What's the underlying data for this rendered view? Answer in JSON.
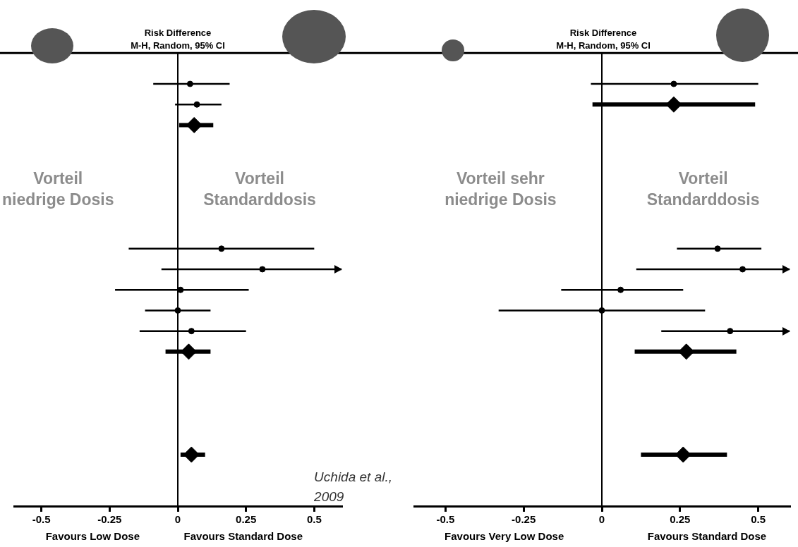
{
  "chart_data": [
    {
      "type": "scatter",
      "orientation": "horizontal",
      "title": "Risk Difference",
      "subtitle": "M-H, Random, 95% CI",
      "categories": [
        null,
        null,
        null,
        null,
        null,
        null,
        null,
        null,
        null,
        null,
        null,
        null,
        null,
        null,
        null,
        null,
        null,
        null,
        null,
        null,
        null,
        null
      ],
      "series": [
        {
          "type": "scatter",
          "marker": "circle",
          "color": "#000000",
          "values": [
            null,
            0.045,
            0.07,
            null,
            null,
            null,
            null,
            null,
            null,
            0.16,
            0.31,
            0.01,
            0,
            0.05,
            null,
            null,
            null,
            null,
            null,
            null,
            null,
            null
          ],
          "errors": [
            null,
            [
              -0.09,
              0.19
            ],
            [
              -0.01,
              0.16
            ],
            null,
            null,
            null,
            null,
            null,
            null,
            [
              -0.18,
              0.5
            ],
            [
              -0.06,
              0.6
            ],
            [
              -0.23,
              0.26
            ],
            [
              -0.12,
              0.12
            ],
            [
              -0.14,
              0.25
            ],
            null,
            null,
            null,
            null,
            null,
            null,
            null,
            null
          ]
        },
        {
          "type": "scatter",
          "marker": "diamond",
          "color": "#000000",
          "values": [
            null,
            null,
            null,
            0.06,
            null,
            null,
            null,
            null,
            null,
            null,
            null,
            null,
            null,
            null,
            0.04,
            null,
            null,
            null,
            null,
            0.05,
            null,
            null
          ],
          "errors": [
            null,
            null,
            null,
            [
              0.005,
              0.13
            ],
            null,
            null,
            null,
            null,
            null,
            null,
            null,
            null,
            null,
            null,
            [
              -0.045,
              0.12
            ],
            null,
            null,
            null,
            null,
            [
              0.01,
              0.1
            ],
            null,
            null
          ]
        }
      ],
      "xlim": [
        -0.6,
        0.6
      ],
      "xticks": [
        -0.5,
        -0.25,
        0,
        0.25,
        0.5
      ],
      "grid": false,
      "legend": false,
      "ref_lines": [
        {
          "axis": "x",
          "value": 0
        }
      ],
      "annotations": [
        "Favours Low Dose",
        "Favours Standard Dose",
        "Vorteil\nniedrige Dosis",
        "Vorteil\nStandarddosis",
        "Uchida et al.,\n2009"
      ]
    },
    {
      "type": "scatter",
      "orientation": "horizontal",
      "title": "Risk Difference",
      "subtitle": "M-H, Random, 95% CI",
      "categories": [
        null,
        null,
        null,
        null,
        null,
        null,
        null,
        null,
        null,
        null,
        null,
        null,
        null,
        null,
        null,
        null,
        null,
        null,
        null,
        null,
        null,
        null
      ],
      "series": [
        {
          "type": "scatter",
          "marker": "circle",
          "color": "#000000",
          "values": [
            null,
            0.23,
            null,
            null,
            null,
            null,
            null,
            null,
            null,
            0.37,
            0.45,
            0.06,
            0,
            0.41,
            null,
            null,
            null,
            null,
            null,
            null,
            null,
            null
          ],
          "errors": [
            null,
            [
              -0.035,
              0.5
            ],
            null,
            null,
            null,
            null,
            null,
            null,
            null,
            [
              0.24,
              0.51
            ],
            [
              0.11,
              0.6
            ],
            [
              -0.13,
              0.26
            ],
            [
              -0.33,
              0.33
            ],
            [
              0.19,
              0.6
            ],
            null,
            null,
            null,
            null,
            null,
            null,
            null,
            null
          ]
        },
        {
          "type": "scatter",
          "marker": "diamond",
          "color": "#000000",
          "values": [
            null,
            null,
            0.23,
            null,
            null,
            null,
            null,
            null,
            null,
            null,
            null,
            null,
            null,
            null,
            0.27,
            null,
            null,
            null,
            null,
            0.26,
            null,
            null
          ],
          "errors": [
            null,
            null,
            [
              -0.03,
              0.49
            ],
            null,
            null,
            null,
            null,
            null,
            null,
            null,
            null,
            null,
            null,
            null,
            [
              0.105,
              0.43
            ],
            null,
            null,
            null,
            null,
            [
              0.125,
              0.4
            ],
            null,
            null
          ]
        }
      ],
      "xlim": [
        -0.6,
        0.6
      ],
      "xticks": [
        -0.5,
        -0.25,
        0,
        0.25,
        0.5
      ],
      "grid": false,
      "legend": false,
      "ref_lines": [
        {
          "axis": "x",
          "value": 0
        }
      ],
      "annotations": [
        "Favours Very Low Dose",
        "Favours Standard Dose",
        "Vorteil sehr\nniedrige Dosis",
        "Vorteil\nStandarddosis"
      ]
    }
  ]
}
